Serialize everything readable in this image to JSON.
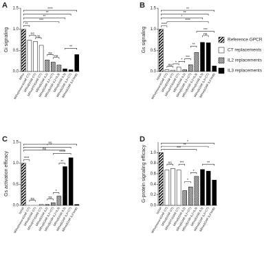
{
  "chart_data": [
    {
      "type": "bar",
      "label": "A",
      "y_label": "Gi signaling",
      "categories": [
        "bRho",
        "bRho(mono-b2AR CT)",
        "bRho(b2AR CT)",
        "bRho(HY-b2AR CT)",
        "bRho(b2AR IL2)",
        "bRho(b2AR IL2+CT)",
        "bRho(b2AR IL2+IL3)",
        "bRho(b2AR IL3)",
        "bRho(b2AR IL3+CT)",
        "bRho(b2AR IL3 loop)"
      ],
      "series": [
        {
          "pattern": "hatch",
          "values": [
            1.0,
            null,
            null,
            null,
            null,
            null,
            null,
            null,
            null,
            null
          ]
        },
        {
          "pattern": "white",
          "values": [
            null,
            0.74,
            0.71,
            0.62,
            null,
            null,
            null,
            null,
            null,
            null
          ]
        },
        {
          "pattern": "checker",
          "values": [
            null,
            null,
            null,
            null,
            0.27,
            0.22,
            0.15,
            null,
            null,
            null
          ]
        },
        {
          "pattern": "black",
          "values": [
            null,
            null,
            null,
            null,
            null,
            null,
            null,
            0.06,
            0.04,
            0.4
          ]
        }
      ],
      "ylim": [
        0,
        1.5
      ],
      "yticks": [
        {
          "value": 0,
          "label": "0.0"
        },
        0.5,
        {
          "value": 1,
          "label": "1.0"
        },
        1.5
      ],
      "annotations": [
        "****",
        "**",
        "**",
        "***",
        "**",
        "ns",
        "ns",
        "ns",
        "ns",
        "**"
      ]
    },
    {
      "type": "bar",
      "label": "B",
      "y_label": "Gs signaling",
      "categories": [
        "b2AR",
        "bRho(mono-b2AR CT)",
        "bRho(b2AR CT)",
        "bRho(HY-b2AR CT)",
        "bRho(b2AR IL2)",
        "bRho(b2AR IL2+CT)",
        "bRho(b2AR IL2+IL3)",
        "bRho(b2AR IL3)",
        "bRho(b2AR IL3+CT)",
        "bRho(b2AR IL3 loop)"
      ],
      "series": [
        {
          "pattern": "hatch",
          "values": [
            1.0,
            null,
            null,
            null,
            null,
            null,
            null,
            null,
            null,
            null
          ]
        },
        {
          "pattern": "white",
          "values": [
            null,
            0.04,
            0.03,
            0.1,
            null,
            null,
            null,
            null,
            null,
            null
          ]
        },
        {
          "pattern": "checker",
          "values": [
            null,
            null,
            null,
            null,
            0.04,
            0.16,
            0.45,
            null,
            null,
            null
          ]
        },
        {
          "pattern": "black",
          "values": [
            null,
            null,
            null,
            null,
            null,
            null,
            null,
            0.69,
            0.68,
            0.13
          ]
        }
      ],
      "ylim": [
        0,
        1.5
      ],
      "yticks": [
        {
          "value": 0,
          "label": "0.0"
        },
        0.5,
        {
          "value": 1,
          "label": "1.0"
        },
        1.5
      ],
      "annotations": [
        "**",
        "**",
        "*",
        "****",
        "****",
        "***",
        "**",
        "***",
        "*",
        "*",
        "ns",
        "ns"
      ]
    },
    {
      "type": "bar",
      "label": "C",
      "y_label": "Gs activation efficacy",
      "categories": [
        "b2AR",
        "bRho(mono-b2AR CT)",
        "bRho(b2AR CT)",
        "bRho(HY-b2AR CT)",
        "bRho(b2AR IL2)",
        "bRho(b2AR IL2+CT)",
        "bRho(b2AR IL2+IL3)",
        "bRho(b2AR IL3)",
        "bRho(b2AR IL3+CT)",
        "bRho(b2AR IL3 loop)"
      ],
      "series": [
        {
          "pattern": "hatch",
          "values": [
            1.0,
            null,
            null,
            null,
            null,
            null,
            null,
            null,
            null,
            null
          ]
        },
        {
          "pattern": "white",
          "values": [
            null,
            0.0,
            0.0,
            0.02,
            null,
            null,
            null,
            null,
            null,
            null
          ]
        },
        {
          "pattern": "checker",
          "values": [
            null,
            null,
            null,
            null,
            0.02,
            0.06,
            0.22,
            null,
            null,
            null
          ]
        },
        {
          "pattern": "black",
          "values": [
            null,
            null,
            null,
            null,
            null,
            null,
            null,
            0.92,
            1.13,
            0.02
          ]
        }
      ],
      "ylim": [
        0,
        1.5
      ],
      "yticks": [
        {
          "value": 0,
          "label": "0.0"
        },
        0.5,
        {
          "value": 1,
          "label": "1.0"
        },
        1.5
      ],
      "annotations": [
        "ns",
        "*",
        "ns",
        "****",
        "****",
        "ns",
        "ns",
        "*",
        "**"
      ]
    },
    {
      "type": "bar",
      "label": "D",
      "y_label": "G-protein signaling efficacy",
      "categories": [
        "b2AR",
        "bRho(mono-b2AR CT)",
        "bRho(b2AR CT)",
        "bRho(HY-b2AR CT)",
        "bRho(b2AR IL2)",
        "bRho(b2AR IL2+CT)",
        "bRho(b2AR IL2+IL3)",
        "bRho(b2AR IL3)",
        "bRho(b2AR IL3+CT)",
        "bRho(b2AR IL3 loop)"
      ],
      "series": [
        {
          "pattern": "hatch",
          "values": [
            1.0,
            null,
            null,
            null,
            null,
            null,
            null,
            null,
            null,
            null
          ]
        },
        {
          "pattern": "white",
          "values": [
            null,
            0.67,
            0.7,
            0.67,
            null,
            null,
            null,
            null,
            null,
            null
          ]
        },
        {
          "pattern": "checker",
          "values": [
            null,
            null,
            null,
            null,
            0.28,
            0.35,
            0.55,
            null,
            null,
            null
          ]
        },
        {
          "pattern": "black",
          "values": [
            null,
            null,
            null,
            null,
            null,
            null,
            null,
            0.68,
            0.65,
            0.48
          ]
        }
      ],
      "ylim": [
        0,
        1.2
      ],
      "yticks": [
        {
          "value": 0,
          "label": "0.0"
        },
        0.2,
        0.4,
        0.6,
        0.8,
        {
          "value": 1,
          "label": "1.0"
        }
      ],
      "annotations": [
        "*",
        "**",
        "***",
        "***",
        "*",
        "*",
        "**",
        "ns"
      ]
    }
  ],
  "legend": [
    {
      "name": "Reference GPCR",
      "pattern": "hatch"
    },
    {
      "name": "CT replacements",
      "pattern": "white"
    },
    {
      "name": "IL2 replacements",
      "pattern": "checker"
    },
    {
      "name": "IL3 replacements",
      "pattern": "black"
    }
  ]
}
